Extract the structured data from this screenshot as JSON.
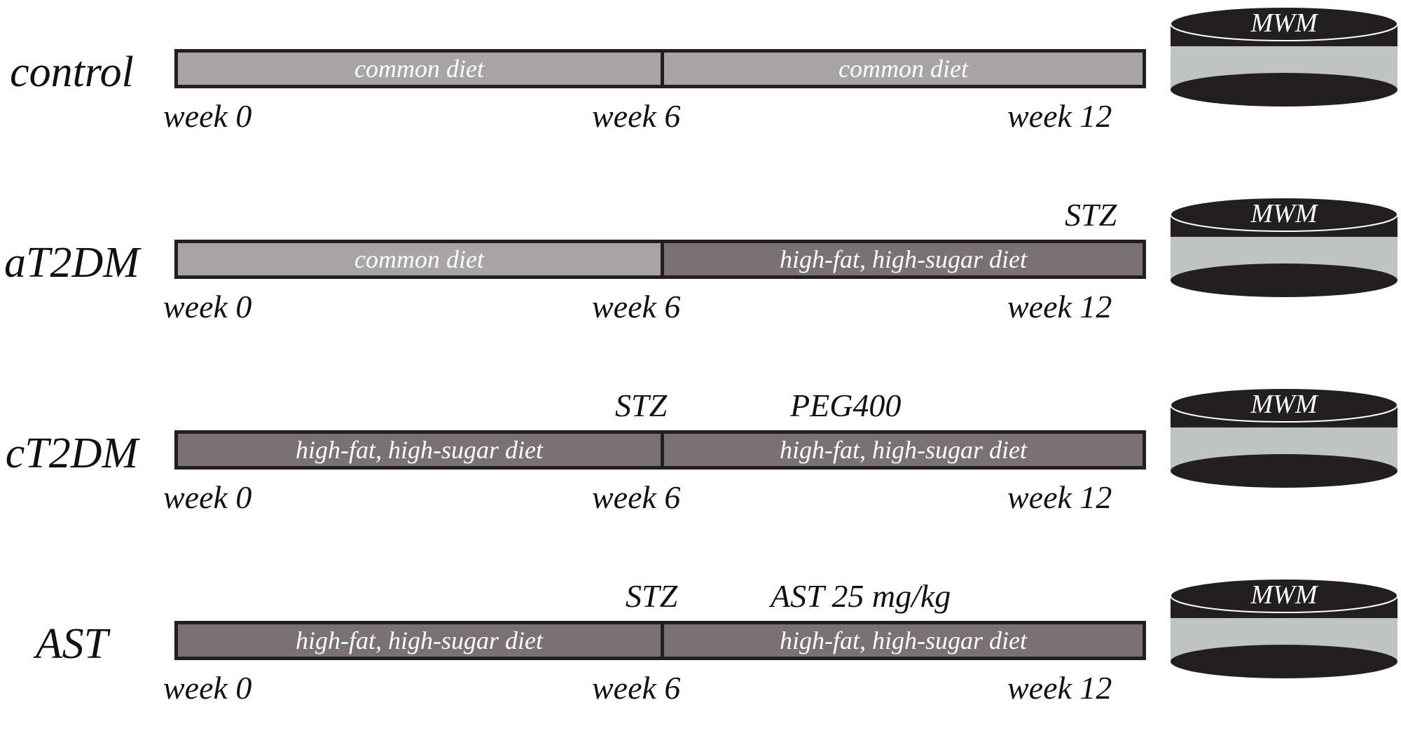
{
  "week_labels": {
    "start": "week 0",
    "mid": "week 6",
    "end": "week 12"
  },
  "maze_label": "MWM",
  "rows": [
    {
      "group": "control",
      "segments": [
        {
          "label": "common diet",
          "kind": "common"
        },
        {
          "label": "common diet",
          "kind": "common"
        }
      ],
      "notes": []
    },
    {
      "group": "aT2DM",
      "segments": [
        {
          "label": "common diet",
          "kind": "common"
        },
        {
          "label": "high-fat, high-sugar diet",
          "kind": "hfhs"
        }
      ],
      "notes": [
        {
          "text": "STZ",
          "at": "week 12"
        }
      ]
    },
    {
      "group": "cT2DM",
      "segments": [
        {
          "label": "high-fat, high-sugar diet",
          "kind": "hfhs"
        },
        {
          "label": "high-fat, high-sugar diet",
          "kind": "hfhs"
        }
      ],
      "notes": [
        {
          "text": "STZ",
          "at": "week 6"
        },
        {
          "text": "PEG400",
          "at": "after week 6"
        }
      ]
    },
    {
      "group": "AST",
      "segments": [
        {
          "label": "high-fat, high-sugar diet",
          "kind": "hfhs"
        },
        {
          "label": "high-fat, high-sugar diet",
          "kind": "hfhs"
        }
      ],
      "notes": [
        {
          "text": "STZ",
          "at": "week 6"
        },
        {
          "text": "AST 25 mg/kg",
          "at": "after week 6"
        }
      ]
    }
  ],
  "colors": {
    "outline": "#231f20",
    "common_diet": "#a7a4a3",
    "high_fat_diet": "#7a7272",
    "maze_dark": "#231f20",
    "maze_band": "#c0c3c4"
  }
}
